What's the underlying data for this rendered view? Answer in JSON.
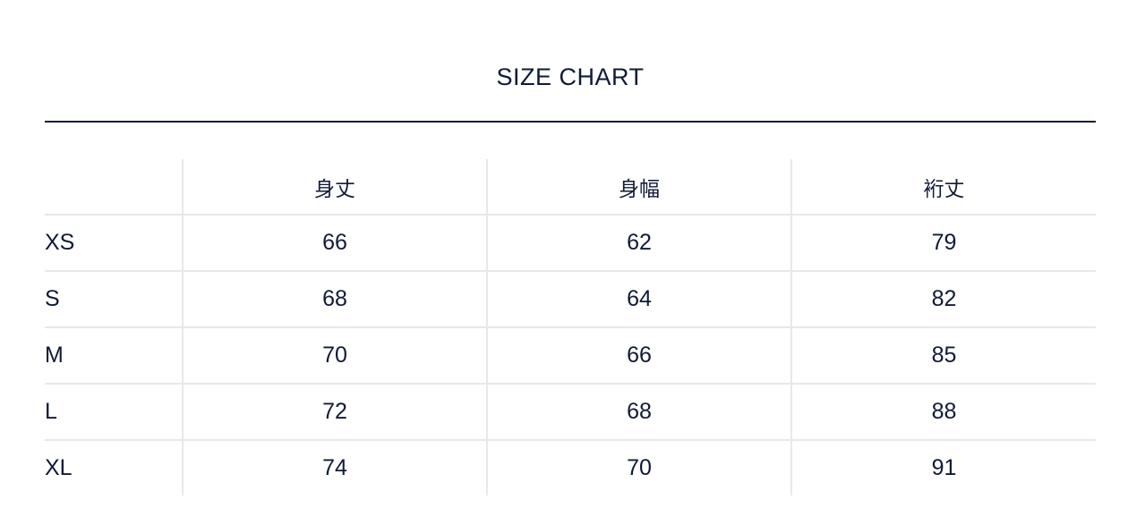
{
  "title": "SIZE CHART",
  "table": {
    "headers": [
      "",
      "身丈",
      "身幅",
      "裄丈"
    ],
    "rows": [
      [
        "XS",
        "66",
        "62",
        "79"
      ],
      [
        "S",
        "68",
        "64",
        "82"
      ],
      [
        "M",
        "70",
        "66",
        "85"
      ],
      [
        "L",
        "72",
        "68",
        "88"
      ],
      [
        "XL",
        "74",
        "70",
        "91"
      ]
    ]
  },
  "colors": {
    "text": "#0f1a36",
    "grid": "#e8e8e8"
  }
}
